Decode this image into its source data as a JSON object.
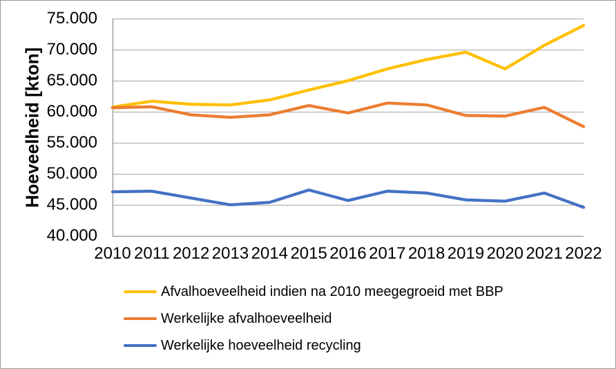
{
  "chart_data": {
    "type": "line",
    "title": "",
    "xlabel": "",
    "ylabel": "Hoeveelheid [kton]",
    "ylim": [
      40000,
      75000
    ],
    "ytick_step": 5000,
    "grid": "horizontal",
    "legend_position": "bottom-left",
    "gridline_color": "#a6a6a6",
    "axis_color": "#808080",
    "background_color": "#ffffff",
    "border_color": "#979797",
    "yticks": [
      {
        "value": 40000,
        "label": "40.000"
      },
      {
        "value": 45000,
        "label": "45.000"
      },
      {
        "value": 50000,
        "label": "50.000"
      },
      {
        "value": 55000,
        "label": "55.000"
      },
      {
        "value": 60000,
        "label": "60.000"
      },
      {
        "value": 65000,
        "label": "65.000"
      },
      {
        "value": 70000,
        "label": "70.000"
      },
      {
        "value": 75000,
        "label": "75.000"
      }
    ],
    "categories": [
      "2010",
      "2011",
      "2012",
      "2013",
      "2014",
      "2015",
      "2016",
      "2017",
      "2018",
      "2019",
      "2020",
      "2021",
      "2022"
    ],
    "series": [
      {
        "id": "afvalhoeveelheid-bbp",
        "name": "Afvalhoeveelheid indien na 2010 meegegroeid met BBP",
        "color": "#FFC000",
        "values": [
          60750,
          61700,
          61200,
          61100,
          61900,
          63500,
          65000,
          66900,
          68400,
          69600,
          66900,
          70700,
          73900
        ]
      },
      {
        "id": "werkelijke-afvalhoeveelheid",
        "name": "Werkelijke afvalhoeveelheid",
        "color": "#ED7D31",
        "values": [
          60650,
          60800,
          59500,
          59100,
          59500,
          61000,
          59800,
          61400,
          61100,
          59400,
          59300,
          60700,
          57600
        ]
      },
      {
        "id": "werkelijke-hoeveelheid-recycling",
        "name": "Werkelijke hoeveelheid recycling",
        "color": "#4472C4",
        "values": [
          47100,
          47200,
          46100,
          45000,
          45400,
          47400,
          45700,
          47200,
          46900,
          45800,
          45600,
          46900,
          44600
        ]
      }
    ]
  }
}
